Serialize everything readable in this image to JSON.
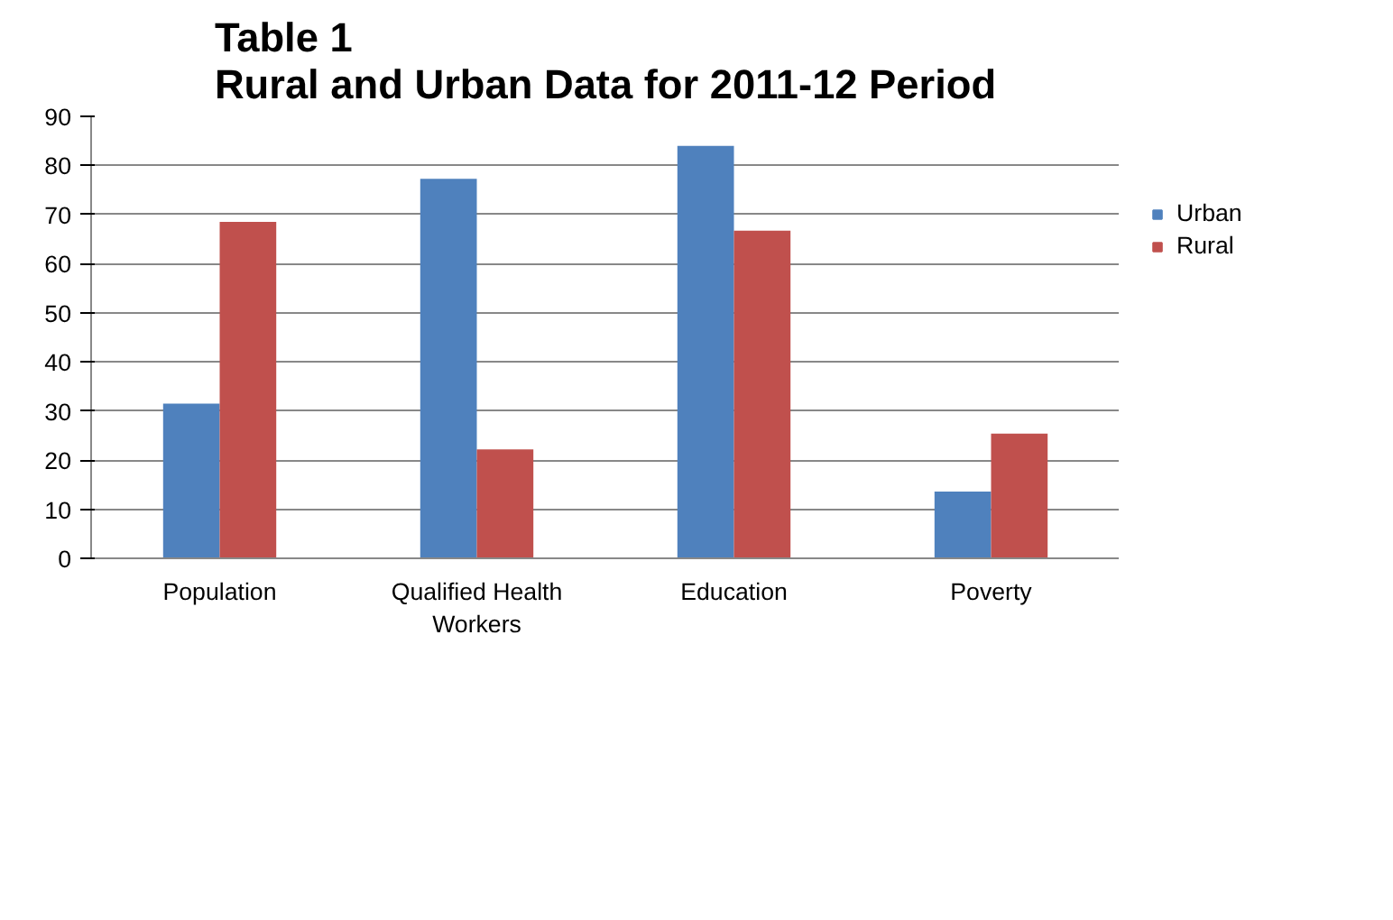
{
  "chart_data": {
    "type": "bar",
    "title": "Table 1\nRural and Urban Data for 2011-12 Period",
    "categories": [
      "Population",
      "Qualified Health Workers",
      "Education",
      "Poverty"
    ],
    "series": [
      {
        "name": "Urban",
        "color": "#4f81bd",
        "values": [
          31.5,
          77.3,
          84.0,
          13.6
        ]
      },
      {
        "name": "Rural",
        "color": "#c0504d",
        "values": [
          68.5,
          22.2,
          66.7,
          25.4
        ]
      }
    ],
    "ylim": [
      0,
      90
    ],
    "yticks": [
      0,
      10,
      20,
      30,
      40,
      50,
      60,
      70,
      80,
      90
    ],
    "grid": "y",
    "legend": "right"
  }
}
